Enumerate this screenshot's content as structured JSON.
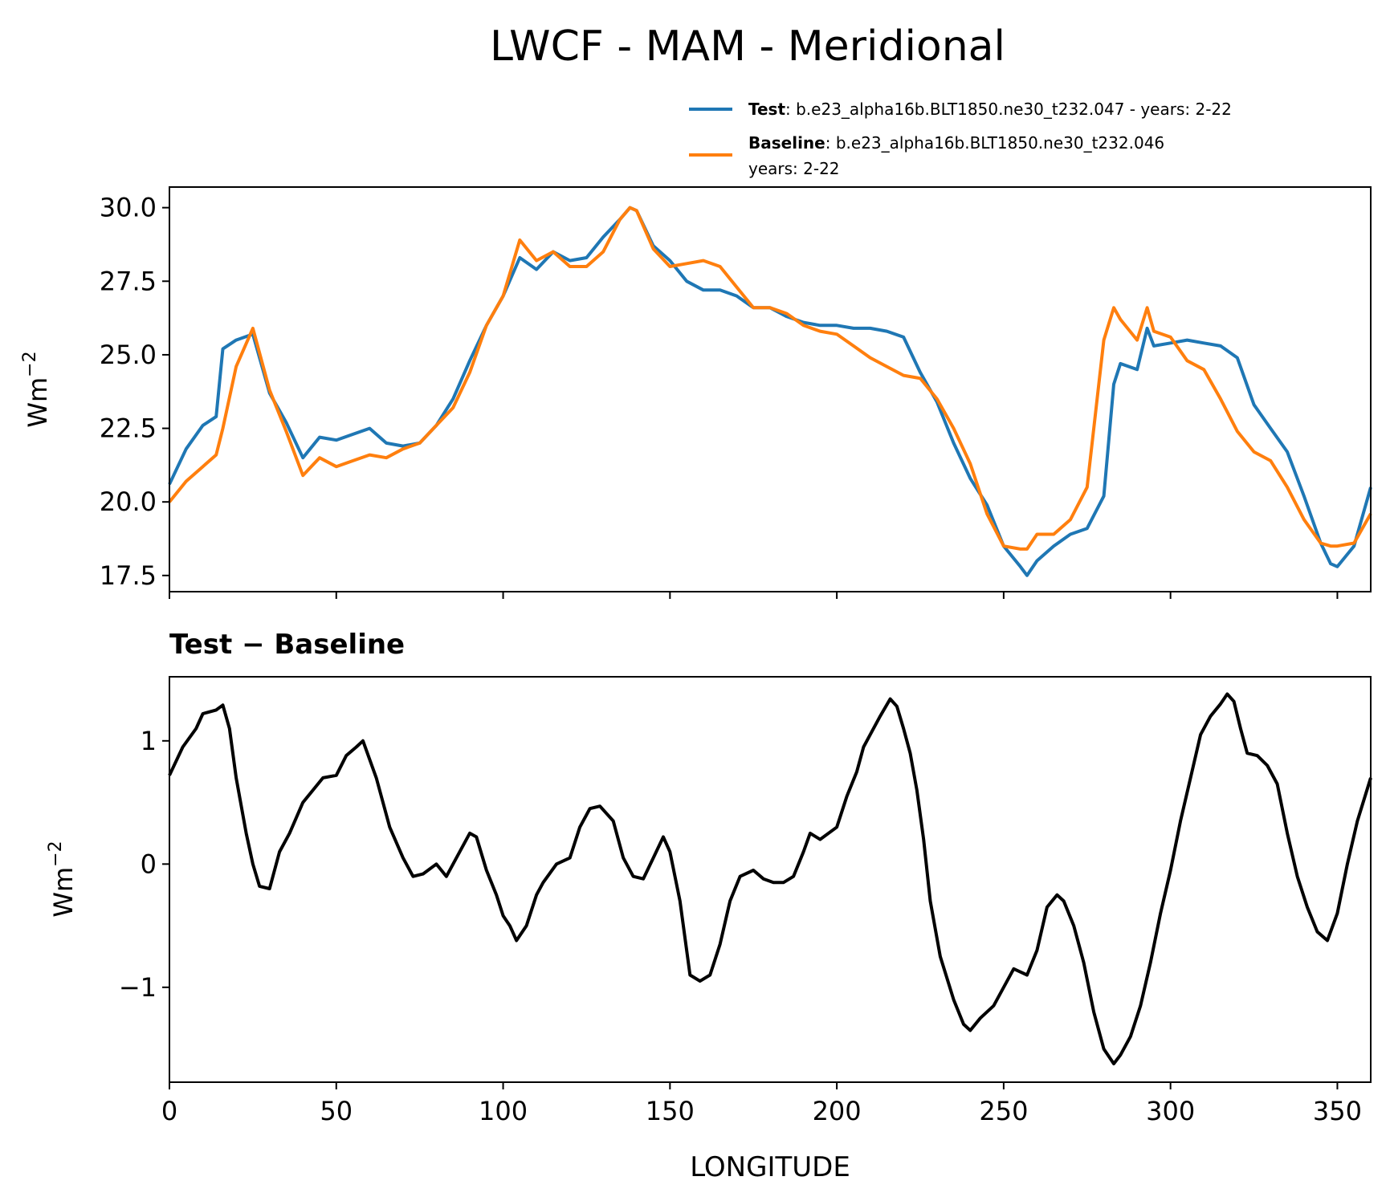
{
  "figure": {
    "title": "LWCF - MAM - Meridional",
    "diff_title": "Test − Baseline",
    "ylabel": "Wm",
    "ylabel_sup": "−2",
    "xlabel": "LONGITUDE"
  },
  "legend": {
    "test_label": "Test",
    "test_text": ": b.e23_alpha16b.BLT1850.ne30_t232.047 - years: 2-22",
    "baseline_label": "Baseline",
    "baseline_text": ": b.e23_alpha16b.BLT1850.ne30_t232.046",
    "baseline_text2": "years: 2-22"
  },
  "colors": {
    "test": "#1f77b4",
    "baseline": "#ff7f0e",
    "diff": "#000000"
  },
  "chart_data": [
    {
      "type": "line",
      "title": "LWCF - MAM - Meridional",
      "xlabel": "",
      "ylabel": "Wm⁻²",
      "xlim": [
        0,
        360
      ],
      "ylim": [
        16.95,
        30.7
      ],
      "yticks": [
        17.5,
        20.0,
        22.5,
        25.0,
        27.5,
        30.0
      ],
      "ytick_labels": [
        "17.5",
        "20.0",
        "22.5",
        "25.0",
        "27.5",
        "30.0"
      ],
      "xticks": [
        0,
        50,
        100,
        150,
        200,
        250,
        300,
        350
      ],
      "legend": "top-right, above axes",
      "x": [
        0,
        5,
        10,
        14,
        16,
        20,
        25,
        30,
        35,
        40,
        45,
        50,
        55,
        60,
        65,
        70,
        75,
        80,
        85,
        90,
        95,
        100,
        105,
        110,
        115,
        120,
        125,
        130,
        135,
        138,
        140,
        145,
        150,
        155,
        160,
        165,
        170,
        175,
        180,
        185,
        190,
        195,
        200,
        205,
        210,
        215,
        220,
        225,
        230,
        235,
        240,
        245,
        250,
        255,
        257,
        260,
        265,
        270,
        275,
        280,
        283,
        285,
        290,
        293,
        295,
        300,
        305,
        310,
        315,
        320,
        325,
        330,
        335,
        340,
        345,
        348,
        350,
        355,
        360
      ],
      "series": [
        {
          "name": "Test",
          "values": [
            20.6,
            21.8,
            22.6,
            22.9,
            25.2,
            25.5,
            25.7,
            23.7,
            22.7,
            21.5,
            22.2,
            22.1,
            22.3,
            22.5,
            22.0,
            21.9,
            22.0,
            22.6,
            23.5,
            24.8,
            26.0,
            27.0,
            28.3,
            27.9,
            28.5,
            28.2,
            28.3,
            29.0,
            29.6,
            30.0,
            29.9,
            28.7,
            28.2,
            27.5,
            27.2,
            27.2,
            27.0,
            26.6,
            26.6,
            26.3,
            26.1,
            26.0,
            26.0,
            25.9,
            25.9,
            25.8,
            25.6,
            24.4,
            23.4,
            22.0,
            20.8,
            19.9,
            18.5,
            17.8,
            17.5,
            18.0,
            18.5,
            18.9,
            19.1,
            20.2,
            24.0,
            24.7,
            24.5,
            25.9,
            25.3,
            25.4,
            25.5,
            25.4,
            25.3,
            24.9,
            23.3,
            22.5,
            21.7,
            20.2,
            18.6,
            17.9,
            17.8,
            18.5,
            20.5
          ]
        },
        {
          "name": "Baseline",
          "values": [
            20.0,
            20.7,
            21.2,
            21.6,
            22.5,
            24.6,
            25.9,
            23.8,
            22.4,
            20.9,
            21.5,
            21.2,
            21.4,
            21.6,
            21.5,
            21.8,
            22.0,
            22.6,
            23.2,
            24.4,
            26.0,
            27.0,
            28.9,
            28.2,
            28.5,
            28.0,
            28.0,
            28.5,
            29.6,
            30.0,
            29.9,
            28.6,
            28.0,
            28.1,
            28.2,
            28.0,
            27.3,
            26.6,
            26.6,
            26.4,
            26.0,
            25.8,
            25.7,
            25.3,
            24.9,
            24.6,
            24.3,
            24.2,
            23.5,
            22.5,
            21.3,
            19.6,
            18.5,
            18.4,
            18.4,
            18.9,
            18.9,
            19.4,
            20.5,
            25.5,
            26.6,
            26.2,
            25.5,
            26.6,
            25.8,
            25.6,
            24.8,
            24.5,
            23.5,
            22.4,
            21.7,
            21.4,
            20.5,
            19.4,
            18.6,
            18.5,
            18.5,
            18.6,
            19.6
          ]
        }
      ]
    },
    {
      "type": "line",
      "title": "Test − Baseline",
      "xlabel": "LONGITUDE",
      "ylabel": "Wm⁻²",
      "xlim": [
        0,
        360
      ],
      "ylim": [
        -1.77,
        1.52
      ],
      "yticks": [
        -1,
        0,
        1
      ],
      "ytick_labels": [
        "−1",
        "0",
        "1"
      ],
      "xticks": [
        0,
        50,
        100,
        150,
        200,
        250,
        300,
        350
      ],
      "xtick_labels": [
        "0",
        "50",
        "100",
        "150",
        "200",
        "250",
        "300",
        "350"
      ],
      "x": [
        0,
        4,
        8,
        10,
        14,
        16,
        18,
        20,
        23,
        25,
        27,
        30,
        33,
        36,
        40,
        43,
        46,
        50,
        53,
        56,
        58,
        62,
        66,
        70,
        73,
        76,
        80,
        83,
        86,
        90,
        92,
        95,
        98,
        100,
        102,
        104,
        107,
        110,
        112,
        116,
        120,
        123,
        126,
        129,
        133,
        136,
        139,
        142,
        145,
        148,
        150,
        153,
        156,
        159,
        162,
        165,
        168,
        171,
        175,
        178,
        181,
        184,
        187,
        190,
        192,
        195,
        200,
        203,
        206,
        208,
        210,
        213,
        216,
        218,
        220,
        222,
        224,
        226,
        228,
        231,
        235,
        238,
        240,
        243,
        247,
        250,
        253,
        257,
        260,
        263,
        266,
        268,
        271,
        274,
        277,
        280,
        283,
        285,
        288,
        291,
        294,
        297,
        300,
        303,
        306,
        309,
        312,
        315,
        317,
        319,
        321,
        323,
        326,
        329,
        332,
        335,
        338,
        341,
        344,
        347,
        350,
        353,
        356,
        360
      ],
      "series": [
        {
          "name": "Test − Baseline",
          "values": [
            0.72,
            0.95,
            1.1,
            1.22,
            1.25,
            1.29,
            1.1,
            0.7,
            0.25,
            0.0,
            -0.18,
            -0.2,
            0.1,
            0.25,
            0.5,
            0.6,
            0.7,
            0.72,
            0.88,
            0.95,
            1.0,
            0.7,
            0.3,
            0.05,
            -0.1,
            -0.08,
            0.0,
            -0.1,
            0.05,
            0.25,
            0.22,
            -0.05,
            -0.25,
            -0.42,
            -0.5,
            -0.62,
            -0.5,
            -0.25,
            -0.15,
            0.0,
            0.05,
            0.3,
            0.45,
            0.47,
            0.35,
            0.05,
            -0.1,
            -0.12,
            0.05,
            0.22,
            0.1,
            -0.3,
            -0.9,
            -0.95,
            -0.9,
            -0.65,
            -0.3,
            -0.1,
            -0.05,
            -0.12,
            -0.15,
            -0.15,
            -0.1,
            0.1,
            0.25,
            0.2,
            0.3,
            0.55,
            0.75,
            0.95,
            1.05,
            1.2,
            1.34,
            1.28,
            1.1,
            0.9,
            0.6,
            0.2,
            -0.3,
            -0.75,
            -1.1,
            -1.3,
            -1.35,
            -1.25,
            -1.15,
            -1.0,
            -0.85,
            -0.9,
            -0.7,
            -0.35,
            -0.25,
            -0.3,
            -0.5,
            -0.8,
            -1.2,
            -1.5,
            -1.62,
            -1.55,
            -1.4,
            -1.15,
            -0.8,
            -0.4,
            -0.05,
            0.35,
            0.7,
            1.05,
            1.2,
            1.3,
            1.38,
            1.32,
            1.1,
            0.9,
            0.88,
            0.8,
            0.65,
            0.25,
            -0.1,
            -0.35,
            -0.55,
            -0.62,
            -0.4,
            0.0,
            0.35,
            0.7
          ]
        }
      ]
    }
  ]
}
